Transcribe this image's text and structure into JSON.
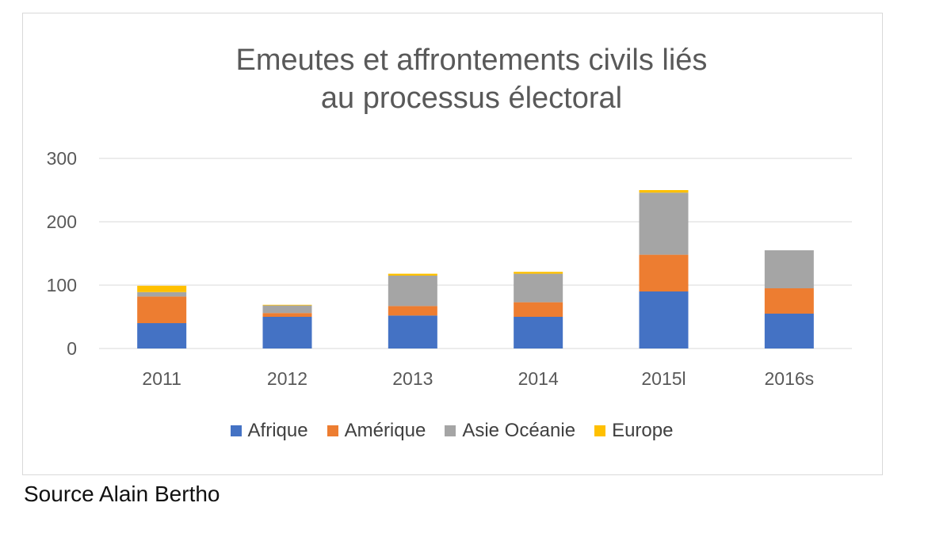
{
  "chart_data": {
    "type": "bar",
    "stacked": true,
    "title_lines": [
      "Emeutes et affrontements civils liés",
      "au processus électoral"
    ],
    "categories": [
      "2011",
      "2012",
      "2013",
      "2014",
      "2015l",
      "2016s"
    ],
    "y_ticks": [
      "0",
      "100",
      "200",
      "300"
    ],
    "ylim": [
      0,
      300
    ],
    "grid": true,
    "legend_position": "bottom",
    "series": [
      {
        "name": "Afrique",
        "color": "#4472c4",
        "values": [
          40,
          50,
          52,
          50,
          90,
          55
        ]
      },
      {
        "name": "Amérique",
        "color": "#ed7d31",
        "values": [
          42,
          6,
          15,
          23,
          58,
          40
        ]
      },
      {
        "name": "Asie Océanie",
        "color": "#a5a5a5",
        "values": [
          7,
          12,
          48,
          45,
          98,
          60
        ]
      },
      {
        "name": "Europe",
        "color": "#ffc000",
        "values": [
          10,
          1,
          3,
          3,
          4,
          0
        ]
      }
    ]
  },
  "source": "Source Alain Bertho"
}
